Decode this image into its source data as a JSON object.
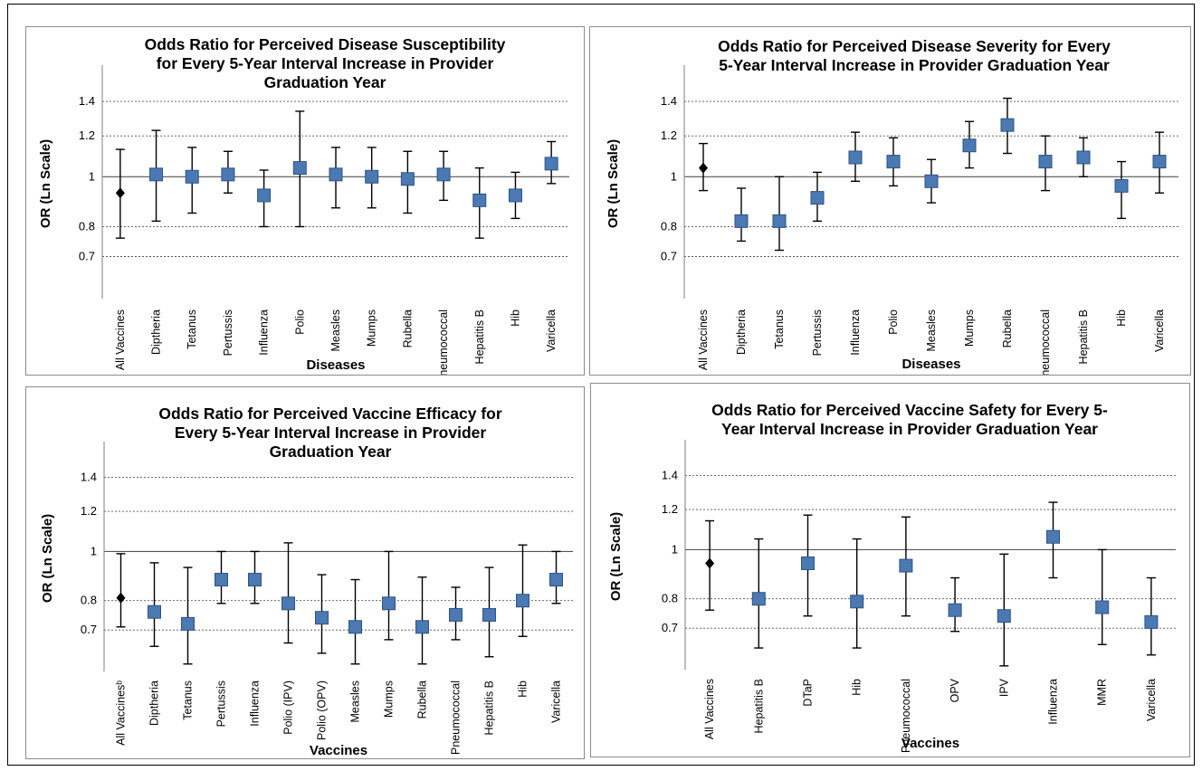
{
  "chart_data": [
    {
      "id": "susceptibility",
      "type": "scatter",
      "title": [
        "Odds Ratio for Perceived Disease Susceptibility",
        "for Every 5-Year Interval Increase in Provider",
        "Graduation Year"
      ],
      "xlabel": "Diseases",
      "ylabel": "OR (Ln Scale)",
      "yscale": "log",
      "ylim": [
        0.58,
        1.62
      ],
      "yticks": [
        "1.4",
        "1.2",
        "1",
        "0.8",
        "0.7"
      ],
      "reference_line": 1,
      "grid": true,
      "categories": [
        "All Vaccines",
        "Diptheria",
        "Tetanus",
        "Pertussis",
        "Influenza",
        "Polio",
        "Measles",
        "Mumps",
        "Rubella",
        "Pneumococcal",
        "Hepatitis B",
        "Hib",
        "Varicella"
      ],
      "values": [
        0.93,
        1.01,
        1.0,
        1.01,
        0.92,
        1.04,
        1.01,
        1.0,
        0.99,
        1.01,
        0.9,
        0.92,
        1.06
      ],
      "lower": [
        0.76,
        0.82,
        0.85,
        0.93,
        0.8,
        0.8,
        0.87,
        0.87,
        0.85,
        0.9,
        0.76,
        0.83,
        0.97
      ],
      "upper": [
        1.13,
        1.23,
        1.14,
        1.12,
        1.03,
        1.34,
        1.14,
        1.14,
        1.12,
        1.12,
        1.04,
        1.02,
        1.17
      ],
      "marker_first": "diamond",
      "marker_rest": "square",
      "marker_color": "#4a79b3"
    },
    {
      "id": "severity",
      "type": "scatter",
      "title": [
        "Odds Ratio for Perceived Disease Severity for Every",
        "5-Year Interval Increase in Provider Graduation Year"
      ],
      "xlabel": "Diseases",
      "ylabel": "OR (Ln Scale)",
      "yscale": "log",
      "ylim": [
        0.58,
        1.62
      ],
      "yticks": [
        "1.4",
        "1.2",
        "1",
        "0.8",
        "0.7"
      ],
      "reference_line": 1,
      "grid": true,
      "categories": [
        "All Vaccines",
        "Diptheria",
        "Tetanus",
        "Pertussis",
        "Influenza",
        "Polio",
        "Measles",
        "Mumps",
        "Rubella",
        "Pneumococcal",
        "Hepatitis B",
        "Hib",
        "Varicella"
      ],
      "values": [
        1.04,
        0.82,
        0.82,
        0.91,
        1.09,
        1.07,
        0.98,
        1.15,
        1.26,
        1.07,
        1.09,
        0.96,
        1.07
      ],
      "lower": [
        0.94,
        0.75,
        0.72,
        0.82,
        0.98,
        0.96,
        0.89,
        1.04,
        1.11,
        0.94,
        1.0,
        0.83,
        0.93
      ],
      "upper": [
        1.16,
        0.95,
        1.0,
        1.02,
        1.22,
        1.19,
        1.08,
        1.28,
        1.42,
        1.2,
        1.19,
        1.07,
        1.22
      ],
      "marker_first": "diamond",
      "marker_rest": "square",
      "marker_color": "#4a79b3"
    },
    {
      "id": "efficacy",
      "type": "scatter",
      "title": [
        "Odds Ratio for Perceived Vaccine Efficacy for",
        "Every 5-Year Interval Increase in Provider",
        "Graduation Year"
      ],
      "xlabel": "Vaccines",
      "ylabel": "OR (Ln Scale)",
      "yscale": "log",
      "ylim": [
        0.58,
        1.62
      ],
      "yticks": [
        "1.4",
        "1.2",
        "1",
        "0.8",
        "0.7"
      ],
      "reference_line": 1,
      "grid": true,
      "categories": [
        "All Vaccinesᵇ",
        "Diptheria",
        "Tetanus",
        "Pertussis",
        "Influenza",
        "Polio (IPV)",
        "Polio (OPV)",
        "Measles",
        "Mumps",
        "Rubella",
        "Pneumococcal",
        "Hepatitis B",
        "Hib",
        "Varicella"
      ],
      "values": [
        0.81,
        0.76,
        0.72,
        0.88,
        0.88,
        0.79,
        0.74,
        0.71,
        0.79,
        0.71,
        0.75,
        0.75,
        0.8,
        0.88
      ],
      "lower": [
        0.71,
        0.65,
        0.6,
        0.79,
        0.79,
        0.66,
        0.63,
        0.6,
        0.67,
        0.6,
        0.67,
        0.62,
        0.68,
        0.79
      ],
      "upper": [
        0.99,
        0.95,
        0.93,
        1.0,
        1.0,
        1.04,
        0.9,
        0.88,
        1.0,
        0.89,
        0.85,
        0.93,
        1.03,
        1.0
      ],
      "marker_first": "diamond",
      "marker_rest": "square",
      "marker_color": "#4a79b3"
    },
    {
      "id": "safety",
      "type": "scatter",
      "title": [
        "Odds Ratio for Perceived Vaccine Safety for Every 5-",
        "Year Interval Increase in Provider Graduation Year"
      ],
      "xlabel": "Vaccines",
      "ylabel": "OR (Ln Scale)",
      "yscale": "log",
      "ylim": [
        0.58,
        1.62
      ],
      "yticks": [
        "1.4",
        "1.2",
        "1",
        "0.8",
        "0.7"
      ],
      "reference_line": 1,
      "grid": true,
      "categories": [
        "All Vaccines",
        "Hepatitis B",
        "DTaP",
        "Hib",
        "Pneumococcal",
        "OPV",
        "IPV",
        "Influenza",
        "MMR",
        "Varicella"
      ],
      "values": [
        0.94,
        0.8,
        0.94,
        0.79,
        0.93,
        0.76,
        0.74,
        1.06,
        0.77,
        0.72
      ],
      "lower": [
        0.76,
        0.64,
        0.74,
        0.64,
        0.74,
        0.69,
        0.59,
        0.88,
        0.65,
        0.62
      ],
      "upper": [
        1.14,
        1.05,
        1.17,
        1.05,
        1.16,
        0.88,
        0.98,
        1.24,
        1.0,
        0.88
      ],
      "marker_first": "diamond",
      "marker_rest": "square",
      "marker_color": "#4a79b3"
    }
  ]
}
